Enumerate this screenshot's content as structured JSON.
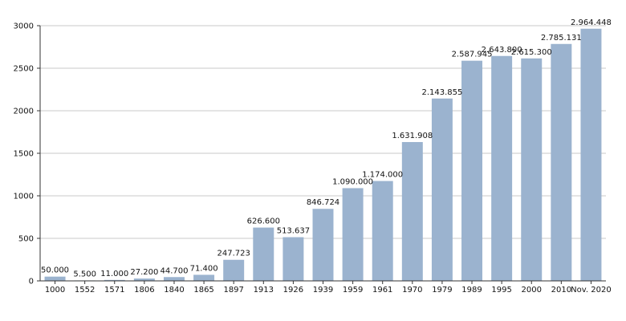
{
  "chart_data": {
    "type": "bar",
    "title": "",
    "xlabel": "",
    "ylabel": "",
    "ylim": [
      0,
      3000
    ],
    "yticks": [
      0,
      500,
      1000,
      1500,
      2000,
      2500,
      3000
    ],
    "grid": true,
    "bar_color": "#9bb3cf",
    "categories": [
      "1000",
      "1552",
      "1571",
      "1806",
      "1840",
      "1865",
      "1897",
      "1913",
      "1926",
      "1939",
      "1959",
      "1961",
      "1970",
      "1979",
      "1989",
      "1995",
      "2000",
      "2010",
      "Nov. 2020"
    ],
    "values": [
      50,
      5.5,
      11,
      27.2,
      44.7,
      71.4,
      247.723,
      626.6,
      513.637,
      846.724,
      1090,
      1174,
      1631.908,
      2143.855,
      2587.945,
      2643.8,
      2615.3,
      2785.131,
      2964.448
    ],
    "value_labels": [
      "50.000",
      "5.500",
      "11.000",
      "27.200",
      "44.700",
      "71.400",
      "247.723",
      "626.600",
      "513.637",
      "846.724",
      "1.090.000",
      "1.174.000",
      "1.631.908",
      "2.143.855",
      "2.587.945",
      "2.643.800",
      "2.615.300",
      "2.785.131",
      "2.964.448"
    ]
  }
}
